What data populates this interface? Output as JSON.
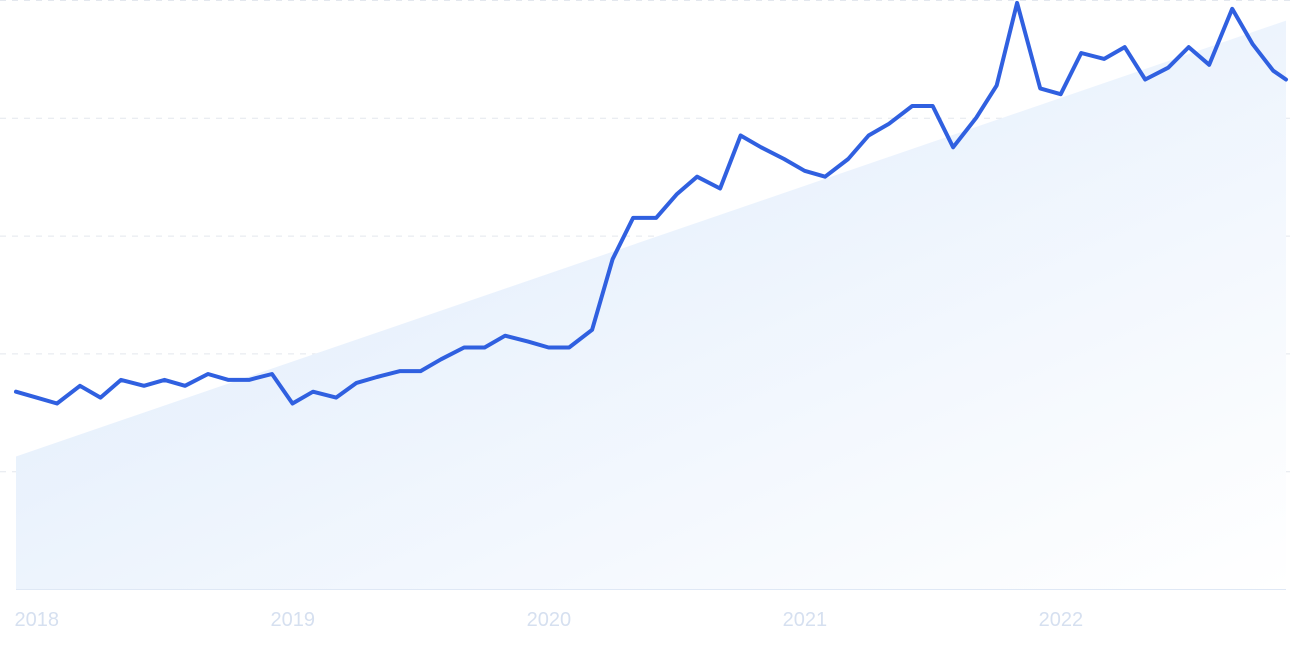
{
  "chart_data": {
    "type": "line",
    "title": "",
    "xlabel": "",
    "ylabel": "",
    "x_tick_labels": [
      "2018",
      "2019",
      "2020",
      "2021",
      "2022"
    ],
    "xlim": [
      2017.92,
      2022.88
    ],
    "ylim": [
      0,
      100
    ],
    "y_gridlines": [
      0,
      20,
      40,
      60,
      80,
      100
    ],
    "grid": true,
    "legend": "none",
    "colors": {
      "line": "#3060e0",
      "trend_fill_top": "#dbe9fb",
      "trend_fill_bottom": "#ffffff",
      "grid": "#e3e7ee",
      "tick_text": "#d6e0f0"
    },
    "trend": {
      "x": [
        2017.92,
        2022.88
      ],
      "y": [
        22.5,
        96.5
      ]
    },
    "series": [
      {
        "x": [
          2017.92,
          2018.0,
          2018.08,
          2018.17,
          2018.25,
          2018.33,
          2018.42,
          2018.5,
          2018.58,
          2018.67,
          2018.75,
          2018.83,
          2018.92,
          2019.0,
          2019.08,
          2019.17,
          2019.25,
          2019.33,
          2019.42,
          2019.5,
          2019.58,
          2019.67,
          2019.75,
          2019.83,
          2019.92,
          2020.0,
          2020.08,
          2020.17,
          2020.25,
          2020.33,
          2020.42,
          2020.5,
          2020.58,
          2020.67,
          2020.75,
          2020.83,
          2020.92,
          2021.0,
          2021.08,
          2021.17,
          2021.25,
          2021.33,
          2021.42,
          2021.5,
          2021.58,
          2021.67,
          2021.75,
          2021.83,
          2021.92,
          2022.0,
          2022.08,
          2022.17,
          2022.25,
          2022.33,
          2022.42,
          2022.5,
          2022.58,
          2022.67,
          2022.75,
          2022.83,
          2022.88
        ],
        "y": [
          33.5,
          32.5,
          31.5,
          34.5,
          32.5,
          35.5,
          34.5,
          35.5,
          34.5,
          36.5,
          35.5,
          35.5,
          36.5,
          31.5,
          33.5,
          32.5,
          35.0,
          36.0,
          37.0,
          37.0,
          39.0,
          41.0,
          41.0,
          43.0,
          42.0,
          41.0,
          41.0,
          44.0,
          56.0,
          63.0,
          63.0,
          67.0,
          70.0,
          68.0,
          77.0,
          75.0,
          73.0,
          71.0,
          70.0,
          73.0,
          77.0,
          79.0,
          82.0,
          82.0,
          75.0,
          80.0,
          85.5,
          99.5,
          85.0,
          84.0,
          91.0,
          90.0,
          92.0,
          86.5,
          88.5,
          92.0,
          89.0,
          98.5,
          92.5,
          88.0,
          86.5
        ]
      }
    ]
  }
}
